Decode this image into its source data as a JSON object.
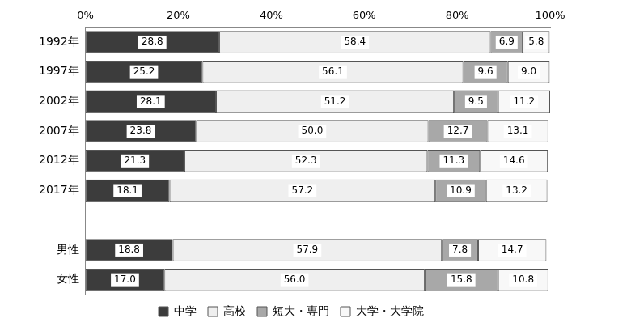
{
  "chart_data": {
    "type": "bar",
    "orientation": "horizontal",
    "stacked": true,
    "categories": [
      "1992年",
      "1997年",
      "2002年",
      "2007年",
      "2012年",
      "2017年",
      null,
      "男性",
      "女性"
    ],
    "series": [
      {
        "name": "中学",
        "color": "#3c3c3c",
        "values": [
          28.8,
          25.2,
          28.1,
          23.8,
          21.3,
          18.1,
          null,
          18.8,
          17.0
        ],
        "value_labels": [
          "28.8",
          "25.2",
          "28.1",
          "23.8",
          "21.3",
          "18.1",
          null,
          "18.8",
          "17.0"
        ]
      },
      {
        "name": "高校",
        "color": "#efefef",
        "values": [
          58.4,
          56.1,
          51.2,
          50.0,
          52.3,
          57.2,
          null,
          57.9,
          56.0
        ],
        "value_labels": [
          "58.4",
          "56.1",
          "51.2",
          "50.0",
          "52.3",
          "57.2",
          null,
          "57.9",
          "56.0"
        ]
      },
      {
        "name": "短大・専門",
        "color": "#a8a8a8",
        "values": [
          6.9,
          9.6,
          9.5,
          12.7,
          11.3,
          10.9,
          null,
          7.8,
          15.8
        ],
        "value_labels": [
          "6.9",
          "9.6",
          "9.5",
          "12.7",
          "11.3",
          "10.9",
          null,
          "7.8",
          "15.8"
        ]
      },
      {
        "name": "大学・大学院",
        "color": "#f8f8f8",
        "values": [
          5.8,
          9.0,
          11.2,
          13.1,
          14.6,
          13.2,
          null,
          14.7,
          10.8
        ],
        "value_labels": [
          "5.8",
          "9.0",
          "11.2",
          "13.1",
          "14.6",
          "13.2",
          null,
          "14.7",
          "10.8"
        ]
      }
    ],
    "xlim": [
      0,
      100
    ],
    "xticks": [
      {
        "value": 0,
        "label": "0%"
      },
      {
        "value": 20,
        "label": "20%"
      },
      {
        "value": 40,
        "label": "40%"
      },
      {
        "value": 60,
        "label": "60%"
      },
      {
        "value": 80,
        "label": "80%"
      },
      {
        "value": 100,
        "label": "100%"
      }
    ],
    "grid": false,
    "legend": "bottom",
    "data_labels": true
  }
}
